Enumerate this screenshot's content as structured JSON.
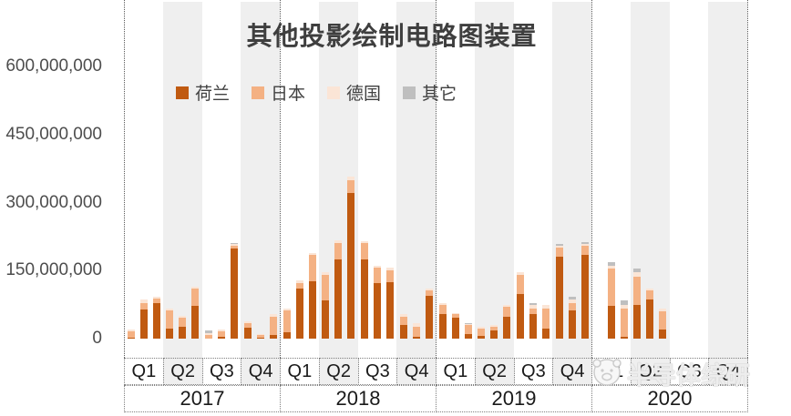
{
  "title": "其他投影绘制电路图装置",
  "legend": [
    {
      "label": "荷兰",
      "color": "#C05A11"
    },
    {
      "label": "日本",
      "color": "#F4B183"
    },
    {
      "label": "德国",
      "color": "#FBE5D6"
    },
    {
      "label": "其它",
      "color": "#BFBFBF"
    }
  ],
  "watermark": {
    "text": "半导体综研"
  },
  "colors": {
    "band": "#efefef",
    "axis_text": "#4d4d4d",
    "title_text": "#3f3f3f",
    "grid_dotted": "#595959"
  },
  "y_axis": {
    "ticks": [
      {
        "label": "600,000,000",
        "value": 600000000
      },
      {
        "label": "450,000,000",
        "value": 450000000
      },
      {
        "label": "300,000,000",
        "value": 300000000
      },
      {
        "label": "150,000,000",
        "value": 150000000
      },
      {
        "label": "0",
        "value": 0
      }
    ]
  },
  "x_axis": {
    "quarters": [
      "Q1",
      "Q2",
      "Q3",
      "Q4"
    ],
    "years": [
      "2017",
      "2018",
      "2019",
      "2020"
    ]
  },
  "chart_data": {
    "type": "bar",
    "stacked": true,
    "title": "其他投影绘制电路图装置",
    "ylim": [
      0,
      600000000
    ],
    "ytick_interval": 150000000,
    "legend_position": "top",
    "background_bands": "Q2 and Q4 columns shaded light gray",
    "x": [
      "2017-01",
      "2017-02",
      "2017-03",
      "2017-04",
      "2017-05",
      "2017-06",
      "2017-07",
      "2017-08",
      "2017-09",
      "2017-10",
      "2017-11",
      "2017-12",
      "2018-01",
      "2018-02",
      "2018-03",
      "2018-04",
      "2018-05",
      "2018-06",
      "2018-07",
      "2018-08",
      "2018-09",
      "2018-10",
      "2018-11",
      "2018-12",
      "2019-01",
      "2019-02",
      "2019-03",
      "2019-04",
      "2019-05",
      "2019-06",
      "2019-07",
      "2019-08",
      "2019-09",
      "2019-10",
      "2019-11",
      "2019-12",
      "2020-01",
      "2020-02",
      "2020-03",
      "2020-04",
      "2020-05",
      "2020-06",
      "2020-07",
      "2020-08",
      "2020-09",
      "2020-10",
      "2020-11",
      "2020-12"
    ],
    "series": [
      {
        "name": "荷兰",
        "color": "#C05A11",
        "values": [
          2000000,
          64000000,
          78000000,
          22000000,
          27000000,
          72000000,
          0,
          4000000,
          198000000,
          25000000,
          2000000,
          8000000,
          15000000,
          110000000,
          127000000,
          85000000,
          174000000,
          322000000,
          174000000,
          122000000,
          124000000,
          30000000,
          5000000,
          95000000,
          55000000,
          47000000,
          10000000,
          6000000,
          19000000,
          48000000,
          98000000,
          55000000,
          23000000,
          180000000,
          62000000,
          185000000,
          0,
          72000000,
          5000000,
          75000000,
          86000000,
          21000000,
          0,
          0,
          0,
          0,
          0,
          0
        ]
      },
      {
        "name": "日本",
        "color": "#F4B183",
        "values": [
          14000000,
          15000000,
          10000000,
          40000000,
          20000000,
          38000000,
          8000000,
          12000000,
          6000000,
          9000000,
          6000000,
          40000000,
          47000000,
          13000000,
          57000000,
          56000000,
          37000000,
          28000000,
          36000000,
          34000000,
          27000000,
          19000000,
          22000000,
          11000000,
          19000000,
          7000000,
          20000000,
          16000000,
          8000000,
          22000000,
          42000000,
          12000000,
          44000000,
          20000000,
          17000000,
          20000000,
          0,
          82000000,
          62000000,
          62000000,
          20000000,
          39000000,
          0,
          0,
          0,
          0,
          0,
          0
        ]
      },
      {
        "name": "德国",
        "color": "#FBE5D6",
        "values": [
          4000000,
          7000000,
          5000000,
          4000000,
          4000000,
          5000000,
          5000000,
          5000000,
          4000000,
          4000000,
          2000000,
          6000000,
          5000000,
          5000000,
          5000000,
          5000000,
          6000000,
          8000000,
          4000000,
          5000000,
          5000000,
          5000000,
          8000000,
          5000000,
          5000000,
          3000000,
          2000000,
          4000000,
          3000000,
          5000000,
          6000000,
          8000000,
          7000000,
          5000000,
          8000000,
          4000000,
          0,
          6000000,
          8000000,
          10000000,
          5000000,
          7000000,
          0,
          0,
          0,
          0,
          0,
          0
        ]
      },
      {
        "name": "其它",
        "color": "#BFBFBF",
        "values": [
          0,
          0,
          0,
          0,
          0,
          0,
          6000000,
          0,
          2000000,
          0,
          0,
          0,
          0,
          0,
          0,
          0,
          0,
          0,
          0,
          0,
          0,
          0,
          0,
          0,
          0,
          0,
          3000000,
          0,
          0,
          0,
          0,
          4000000,
          0,
          4000000,
          5000000,
          3000000,
          0,
          8000000,
          9000000,
          8000000,
          0,
          0,
          0,
          0,
          0,
          0,
          0,
          0
        ]
      }
    ]
  }
}
